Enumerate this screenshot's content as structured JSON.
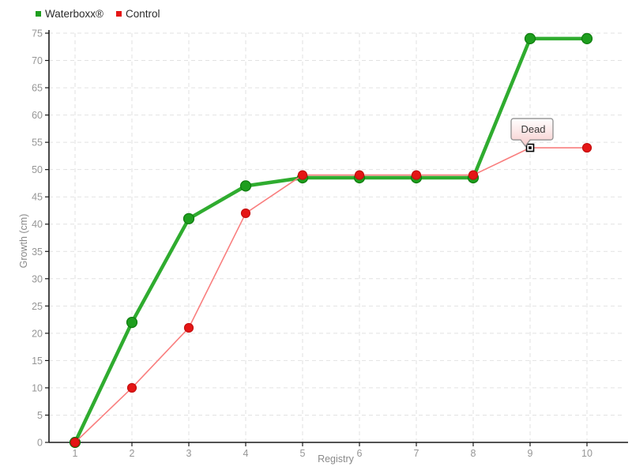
{
  "chart_data": {
    "type": "line",
    "title": "",
    "xlabel": "Registry",
    "ylabel": "Growth (cm)",
    "x": [
      1,
      2,
      3,
      4,
      5,
      6,
      7,
      8,
      9,
      10
    ],
    "ylim": [
      0,
      75
    ],
    "ytick_step": 5,
    "grid": true,
    "legend_position": "top-left",
    "series": [
      {
        "name": "Waterboxx®",
        "line_color": "#2fac2f",
        "marker_fill": "#1e9e1e",
        "marker_stroke": "#0e7c0e",
        "line_width": 4.5,
        "marker_radius": 6.5,
        "values": [
          0,
          22,
          41,
          47,
          48.5,
          48.5,
          48.5,
          48.5,
          74,
          74
        ]
      },
      {
        "name": "Control",
        "line_color": "#f97e7e",
        "marker_fill": "#e51515",
        "marker_stroke": "#c40e0e",
        "line_width": 1.6,
        "marker_radius": 5.5,
        "values": [
          0,
          10,
          21,
          42,
          49,
          49,
          49,
          49,
          54,
          54
        ]
      }
    ],
    "annotation": {
      "text": "Dead",
      "series_index": 1,
      "point_index": 8,
      "x": 9,
      "y": 54,
      "marker": "dead-square",
      "box_border": "#909090",
      "box_gradient_top": "#ffffff",
      "box_gradient_bottom": "#f6cccc"
    },
    "colors": {
      "grid": "#e2e2e2",
      "axis": "#1a1a1a",
      "tick_text": "#969696",
      "axis_title_text": "#8a8a8a"
    }
  }
}
